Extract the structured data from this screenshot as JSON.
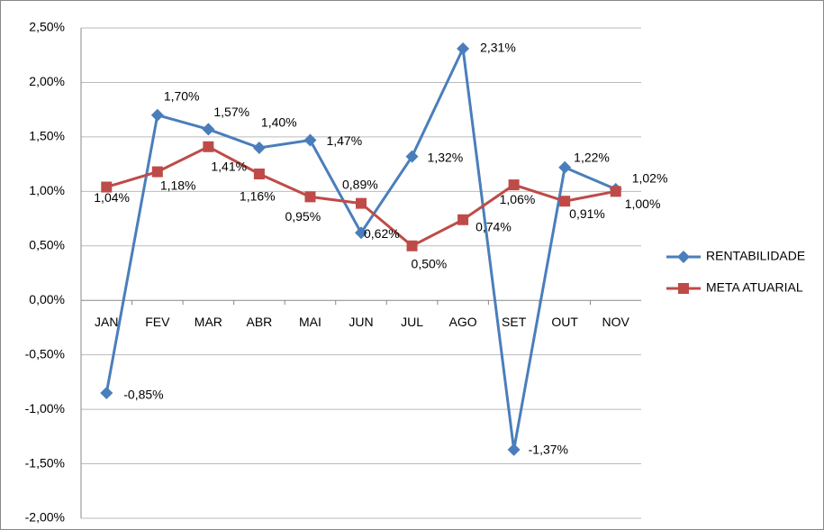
{
  "chart_data": {
    "type": "line",
    "categories": [
      "JAN",
      "FEV",
      "MAR",
      "ABR",
      "MAI",
      "JUN",
      "JUL",
      "AGO",
      "SET",
      "OUT",
      "NOV"
    ],
    "series": [
      {
        "name": "RENTABILIDADE",
        "color": "#4a7ebb",
        "marker": "diamond",
        "values": [
          -0.85,
          1.7,
          1.57,
          1.4,
          1.47,
          0.62,
          1.32,
          2.31,
          -1.37,
          1.22,
          1.02
        ],
        "value_labels": [
          "-0,85%",
          "1,70%",
          "1,57%",
          "1,40%",
          "1,47%",
          "0,62%",
          "1,32%",
          "2,31%",
          "-1,37%",
          "1,22%",
          "1,02%"
        ]
      },
      {
        "name": "META ATUARIAL",
        "color": "#be4b48",
        "marker": "square",
        "values": [
          1.04,
          1.18,
          1.41,
          1.16,
          0.95,
          0.89,
          0.5,
          0.74,
          1.06,
          0.91,
          1.0
        ],
        "value_labels": [
          "1,04%",
          "1,18%",
          "1,41%",
          "1,16%",
          "0,95%",
          "0,89%",
          "0,50%",
          "0,74%",
          "1,06%",
          "0,91%",
          "1,00%"
        ]
      }
    ],
    "ylim": [
      -2.0,
      2.5
    ],
    "yticks": [
      {
        "value": -2.0,
        "label": "-2,00%"
      },
      {
        "value": -1.5,
        "label": "-1,50%"
      },
      {
        "value": -1.0,
        "label": "-1,00%"
      },
      {
        "value": -0.5,
        "label": "-0,50%"
      },
      {
        "value": 0,
        "label": "0,00%"
      },
      {
        "value": 0.5,
        "label": "0,50%"
      },
      {
        "value": 1.0,
        "label": "1,00%"
      },
      {
        "value": 1.5,
        "label": "1,50%"
      },
      {
        "value": 2.0,
        "label": "2,00%"
      },
      {
        "value": 2.5,
        "label": "2,50%"
      }
    ],
    "grid": true,
    "legend": "right"
  }
}
